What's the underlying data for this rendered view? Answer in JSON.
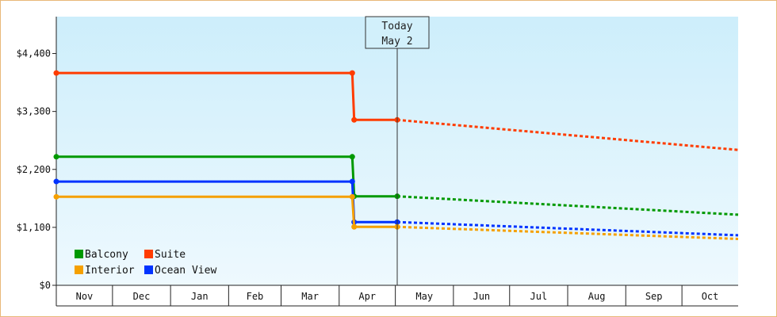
{
  "chart_data": {
    "type": "line",
    "title": "",
    "xlabel": "",
    "ylabel": "",
    "y_unit": "$",
    "y_ticks": [
      "$0",
      "$1,100",
      "$2,200",
      "$3,300",
      "$4,400"
    ],
    "y_tick_values": [
      0,
      1100,
      2200,
      3300,
      4400
    ],
    "ylim": [
      0,
      5100
    ],
    "x_range": [
      "Nov 1",
      "Oct 31"
    ],
    "months": [
      "Nov",
      "Dec",
      "Jan",
      "Feb",
      "Mar",
      "Apr",
      "May",
      "Jun",
      "Jul",
      "Aug",
      "Sep",
      "Oct"
    ],
    "today_marker": {
      "line1": "Today",
      "line2": "May 2",
      "date": "May 2"
    },
    "legend_placement": "bottom-left",
    "grid": false,
    "background_gradient": [
      "#cdeefb",
      "#eef9fe"
    ],
    "series": [
      {
        "name": "Suite",
        "color": "#ff3c00",
        "actual": [
          [
            "Nov 1",
            4030
          ],
          [
            "Apr 8",
            4030
          ],
          [
            "Apr 9",
            3140
          ],
          [
            "May 2",
            3140
          ]
        ],
        "projected": [
          [
            "May 2",
            3140
          ],
          [
            "Oct 31",
            2570
          ]
        ]
      },
      {
        "name": "Balcony",
        "color": "#009900",
        "actual": [
          [
            "Nov 1",
            2440
          ],
          [
            "Apr 8",
            2440
          ],
          [
            "Apr 9",
            1690
          ],
          [
            "May 2",
            1690
          ]
        ],
        "projected": [
          [
            "May 2",
            1690
          ],
          [
            "Oct 31",
            1340
          ]
        ]
      },
      {
        "name": "Ocean View",
        "color": "#0033ff",
        "actual": [
          [
            "Nov 1",
            1970
          ],
          [
            "Apr 8",
            1970
          ],
          [
            "Apr 9",
            1200
          ],
          [
            "May 2",
            1200
          ]
        ],
        "projected": [
          [
            "May 2",
            1200
          ],
          [
            "Oct 31",
            950
          ]
        ]
      },
      {
        "name": "Interior",
        "color": "#f5a000",
        "actual": [
          [
            "Nov 1",
            1680
          ],
          [
            "Apr 8",
            1680
          ],
          [
            "Apr 9",
            1110
          ],
          [
            "May 2",
            1110
          ]
        ],
        "projected": [
          [
            "May 2",
            1110
          ],
          [
            "Oct 31",
            880
          ]
        ]
      }
    ],
    "legend": [
      {
        "name": "Balcony",
        "color": "#009900"
      },
      {
        "name": "Suite",
        "color": "#ff3c00"
      },
      {
        "name": "Interior",
        "color": "#f5a000"
      },
      {
        "name": "Ocean View",
        "color": "#0033ff"
      }
    ]
  }
}
